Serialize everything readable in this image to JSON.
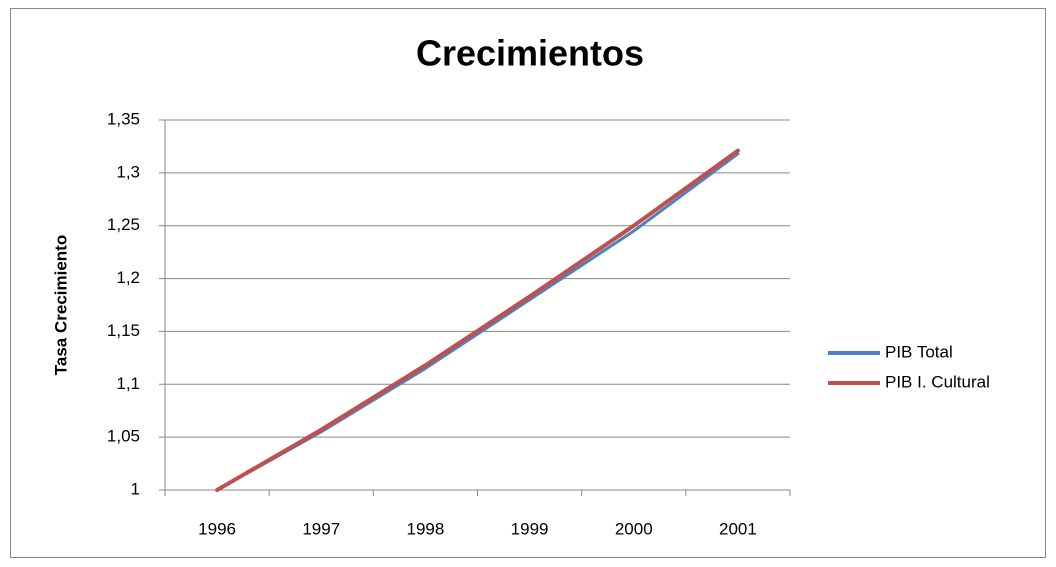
{
  "chart_data": {
    "type": "line",
    "title": "Crecimientos",
    "y_label": "Tasa Crecimiento",
    "categories": [
      "1996",
      "1997",
      "1998",
      "1999",
      "2000",
      "2001"
    ],
    "series": [
      {
        "name": "PIB Total",
        "color": "#4f81bd",
        "values": [
          1,
          1.055,
          1.115,
          1.18,
          1.245,
          1.318
        ]
      },
      {
        "name": "PIB I. Cultural",
        "color": "#c0504d",
        "values": [
          1,
          1.057,
          1.118,
          1.183,
          1.25,
          1.321
        ]
      }
    ],
    "ylim": [
      1,
      1.35
    ],
    "yticks": [
      1,
      {
        "value": 1.05,
        "label": "1,05"
      },
      {
        "value": 1.1,
        "label": "1,1"
      },
      {
        "value": 1.15,
        "label": "1,15"
      },
      {
        "value": 1.2,
        "label": "1,2"
      },
      {
        "value": 1.25,
        "label": "1,25"
      },
      {
        "value": 1.3,
        "label": "1,3"
      },
      {
        "value": 1.35,
        "label": "1,35"
      }
    ],
    "grid": true,
    "legend": "right"
  }
}
